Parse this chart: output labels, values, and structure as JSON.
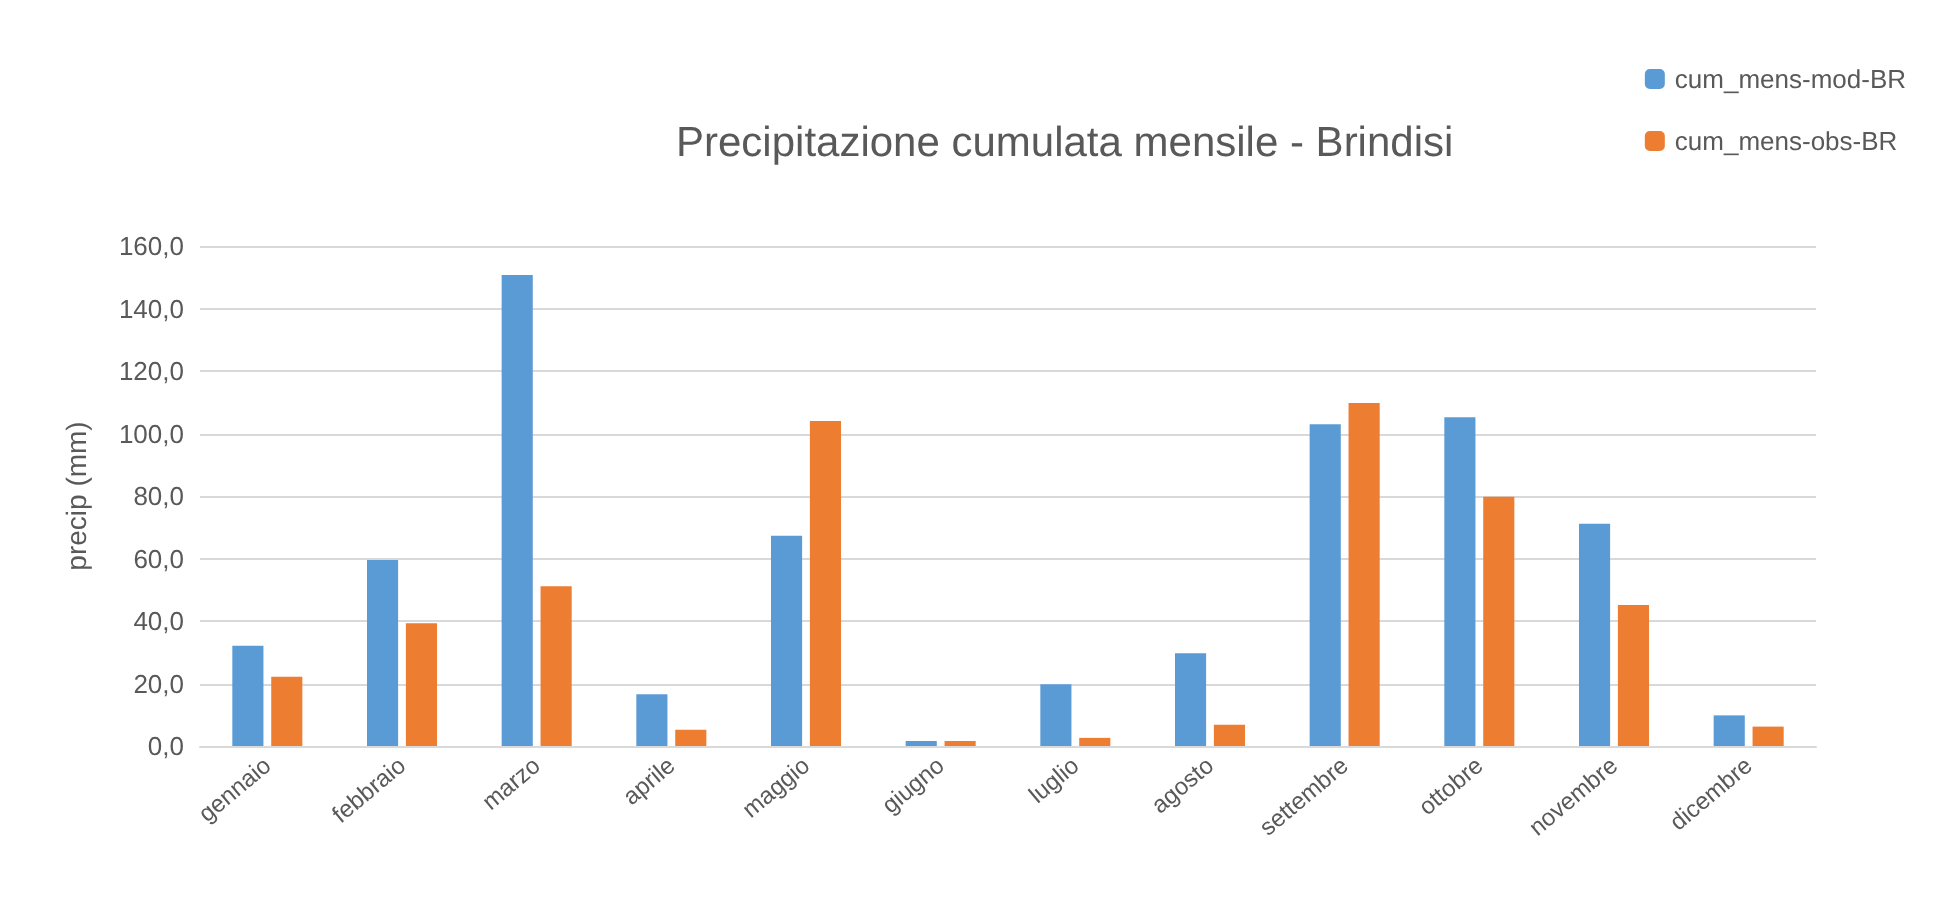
{
  "chart_data": {
    "type": "bar",
    "title": "Precipitazione cumulata mensile - Brindisi",
    "ylabel": "precip (mm)",
    "categories": [
      "gennaio",
      "febbraio",
      "marzo",
      "aprile",
      "maggio",
      "giugno",
      "luglio",
      "agosto",
      "settembre",
      "ottobre",
      "novembre",
      "dicembre"
    ],
    "series": [
      {
        "name": "cum_mens-mod-BR",
        "color": "#5b9bd5",
        "values": [
          32.1,
          59.5,
          150.7,
          16.6,
          67.3,
          1.6,
          19.8,
          29.7,
          103.0,
          105.2,
          71.1,
          9.8
        ]
      },
      {
        "name": "cum_mens-obs-BR",
        "color": "#ed7d31",
        "values": [
          22.2,
          39.3,
          51.1,
          5.2,
          104.0,
          1.6,
          2.6,
          6.8,
          109.8,
          79.8,
          45.1,
          6.2
        ]
      }
    ],
    "ylim": [
      0,
      160
    ],
    "yticks": [
      {
        "value": 0,
        "label": "0,0"
      },
      {
        "value": 20,
        "label": "20,0"
      },
      {
        "value": 40,
        "label": "40,0"
      },
      {
        "value": 60,
        "label": "60,0"
      },
      {
        "value": 80,
        "label": "80,0"
      },
      {
        "value": 100,
        "label": "100,0"
      },
      {
        "value": 120,
        "label": "120,0"
      },
      {
        "value": 140,
        "label": "140,0"
      },
      {
        "value": 160,
        "label": "160,0"
      }
    ],
    "grid": "y",
    "legend": "top right"
  }
}
